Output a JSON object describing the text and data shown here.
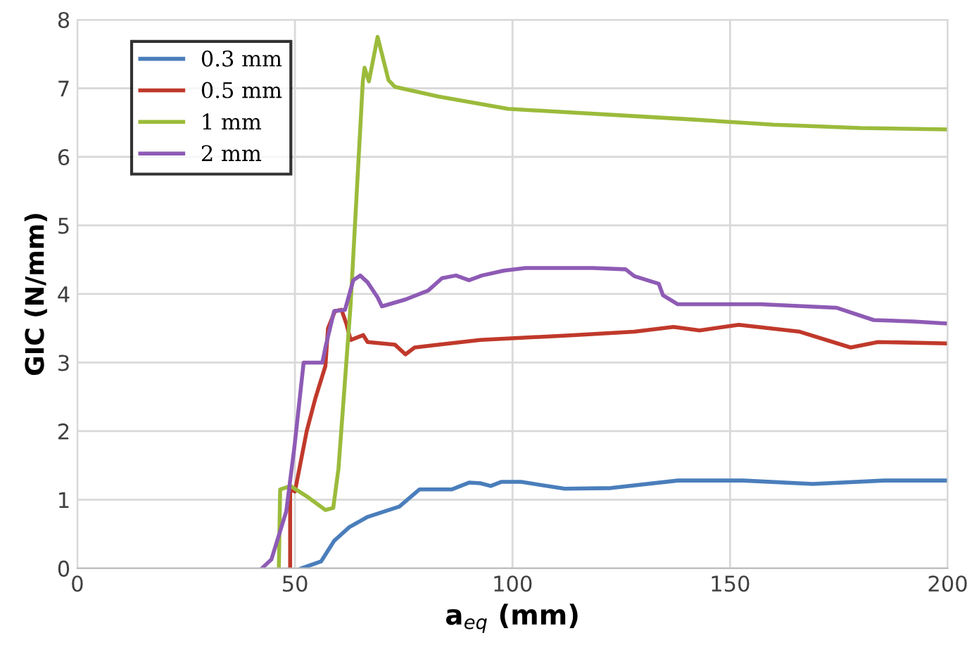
{
  "chart_data": {
    "type": "line",
    "xlabel": "a$_{eq}$ (mm)",
    "ylabel": "GIC (N/mm)",
    "xlim": [
      0,
      200
    ],
    "ylim": [
      0,
      8
    ],
    "xticks": [
      0,
      50,
      100,
      150,
      200
    ],
    "yticks": [
      0,
      1,
      2,
      3,
      4,
      5,
      6,
      7,
      8
    ],
    "grid": true,
    "legend": "top left",
    "series": [
      {
        "name": "0.3 mm",
        "color": "#4a7ebb",
        "x": [
          51.5,
          56,
          59,
          62.5,
          66.7,
          74,
          78.6,
          86,
          90,
          92.6,
          95,
          97.4,
          102,
          112,
          122.6,
          138,
          153,
          169,
          185.4,
          200
        ],
        "values": [
          0,
          0.1,
          0.4,
          0.6,
          0.75,
          0.9,
          1.15,
          1.15,
          1.25,
          1.24,
          1.2,
          1.26,
          1.26,
          1.16,
          1.17,
          1.28,
          1.28,
          1.23,
          1.28,
          1.28
        ]
      },
      {
        "name": "0.5 mm",
        "color": "#c0392b",
        "x": [
          48.9,
          48.9,
          50,
          52.7,
          54.7,
          57,
          57.6,
          59.2,
          60.7,
          61.8,
          62.8,
          65.7,
          66.7,
          73,
          75.4,
          77.5,
          83,
          92.6,
          114,
          128,
          137,
          143,
          152,
          166,
          177.7,
          184,
          200
        ],
        "values": [
          0,
          1.15,
          1.12,
          2.0,
          2.48,
          2.95,
          3.5,
          3.75,
          3.77,
          3.57,
          3.33,
          3.4,
          3.3,
          3.26,
          3.12,
          3.22,
          3.26,
          3.33,
          3.4,
          3.45,
          3.52,
          3.47,
          3.55,
          3.45,
          3.22,
          3.3,
          3.28
        ]
      },
      {
        "name": "1 mm",
        "color": "#9bbb3b",
        "x": [
          46.3,
          46.6,
          49,
          52.7,
          57,
          58.8,
          60,
          62.8,
          65.6,
          66,
          67,
          69,
          71.5,
          73,
          83,
          99,
          140,
          160,
          180,
          200
        ],
        "values": [
          0,
          1.15,
          1.2,
          1.05,
          0.85,
          0.88,
          1.45,
          3.85,
          7.1,
          7.3,
          7.1,
          7.75,
          7.12,
          7.02,
          6.88,
          6.7,
          6.55,
          6.47,
          6.42,
          6.4
        ]
      },
      {
        "name": "2 mm",
        "color": "#8e5bb5",
        "x": [
          42.4,
          44.6,
          48,
          49.9,
          52,
          56.3,
          57,
          59,
          61.5,
          63.4,
          65,
          66.7,
          69,
          70,
          75.4,
          80.6,
          83.8,
          87,
          90,
          93,
          98,
          103,
          118.4,
          126,
          128,
          133.6,
          134.6,
          138,
          157,
          174.4,
          183,
          192,
          200
        ],
        "values": [
          0,
          0.13,
          0.83,
          1.78,
          3.0,
          3.0,
          3.22,
          3.75,
          3.77,
          4.2,
          4.27,
          4.17,
          3.95,
          3.82,
          3.92,
          4.05,
          4.23,
          4.27,
          4.2,
          4.27,
          4.34,
          4.38,
          4.38,
          4.36,
          4.26,
          4.15,
          3.98,
          3.85,
          3.85,
          3.8,
          3.62,
          3.6,
          3.57
        ]
      }
    ]
  }
}
